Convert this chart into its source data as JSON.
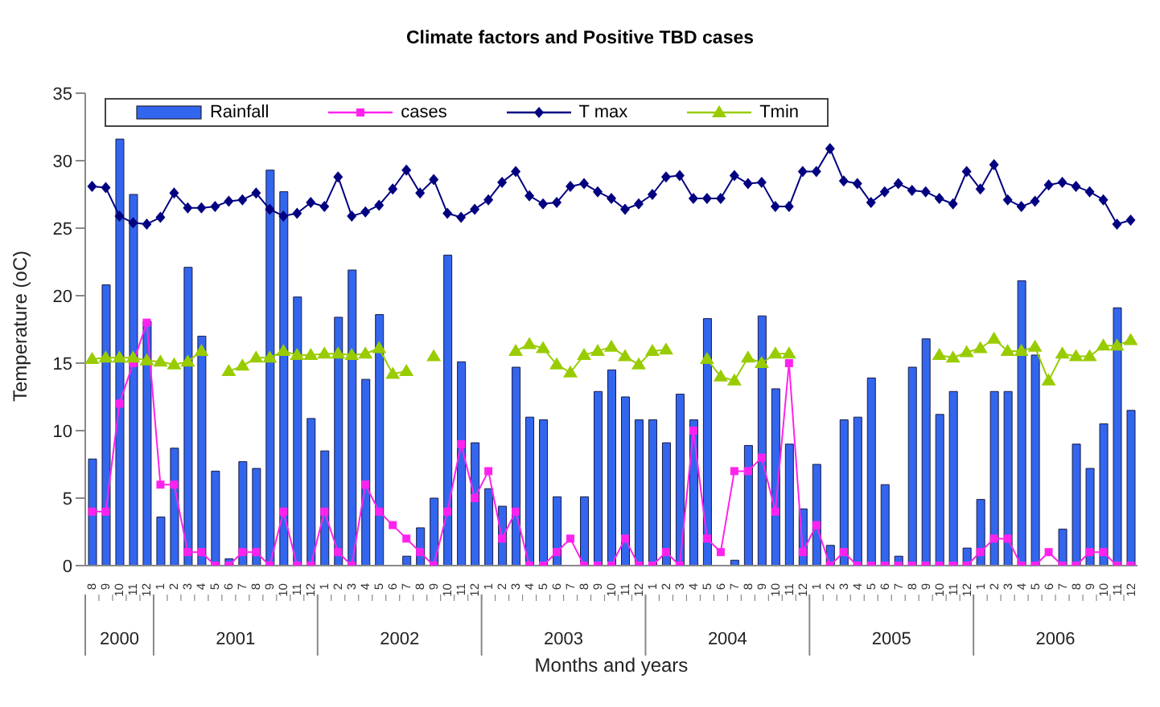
{
  "chart_data": {
    "type": "bar",
    "title": "Climate factors and Positive TBD cases",
    "xlabel": "Months and years",
    "ylabel": "Temperature (oC)",
    "categories": [
      "8",
      "9",
      "10",
      "11",
      "12",
      "1",
      "2",
      "3",
      "4",
      "5",
      "6",
      "7",
      "8",
      "9",
      "10",
      "11",
      "12",
      "1",
      "2",
      "3",
      "4",
      "5",
      "6",
      "7",
      "8",
      "9",
      "10",
      "11",
      "12",
      "1",
      "2",
      "3",
      "4",
      "5",
      "6",
      "7",
      "8",
      "9",
      "10",
      "11",
      "12",
      "1",
      "2",
      "3",
      "4",
      "5",
      "6",
      "7",
      "8",
      "9",
      "10",
      "11",
      "12",
      "1",
      "2",
      "3",
      "4",
      "5",
      "6",
      "7",
      "8",
      "9",
      "10",
      "11",
      "12",
      "1",
      "2",
      "3",
      "4",
      "5",
      "6",
      "7",
      "8",
      "9",
      "10",
      "11",
      "12"
    ],
    "annotations": [
      "2000",
      "2001",
      "2002",
      "2003",
      "2004",
      "2005",
      "2006"
    ],
    "series": [
      {
        "name": "Rainfall",
        "color": "#3366ee",
        "values": [
          7.9,
          20.8,
          31.6,
          27.5,
          18.1,
          3.6,
          8.7,
          22.1,
          17.0,
          7.0,
          0.5,
          7.7,
          7.2,
          29.3,
          27.7,
          19.9,
          10.9,
          8.5,
          18.4,
          21.9,
          13.8,
          18.6,
          0,
          0.7,
          2.8,
          5.0,
          23.0,
          15.1,
          9.1,
          5.7,
          4.4,
          14.7,
          11.0,
          10.8,
          5.1,
          0,
          5.1,
          12.9,
          14.5,
          12.5,
          10.8,
          10.8,
          9.1,
          12.7,
          10.8,
          18.3,
          0,
          0.4,
          8.9,
          18.5,
          13.1,
          9.0,
          4.2,
          7.5,
          1.5,
          10.8,
          11.0,
          13.9,
          6.0,
          0.7,
          14.7,
          16.8,
          11.2,
          12.9,
          1.3,
          4.9,
          12.9,
          12.9,
          21.1,
          15.6,
          0,
          2.7,
          9.0,
          7.2,
          10.5,
          19.1,
          11.5
        ]
      },
      {
        "name": "cases",
        "type": "line",
        "color": "#ff22ee",
        "marker": "square",
        "values": [
          4,
          4,
          12,
          15,
          18,
          6,
          6,
          1,
          1,
          0,
          0,
          1,
          1,
          0,
          4,
          0,
          0,
          4,
          1,
          0,
          6,
          4,
          3,
          2,
          1,
          0,
          4,
          9,
          5,
          7,
          2,
          4,
          0,
          0,
          1,
          2,
          0,
          0,
          0,
          2,
          0,
          0,
          1,
          0,
          10,
          2,
          1,
          7,
          7,
          8,
          4,
          15,
          1,
          3,
          0,
          1,
          0,
          0,
          0,
          0,
          0,
          0,
          0,
          0,
          0,
          1,
          2,
          2,
          0,
          0,
          1,
          0,
          0,
          1,
          1,
          0,
          0
        ]
      },
      {
        "name": "T max",
        "type": "line",
        "color": "#000080",
        "marker": "diamond",
        "values": [
          28.1,
          28.0,
          25.9,
          25.4,
          25.3,
          25.8,
          27.6,
          26.5,
          26.5,
          26.6,
          27.0,
          27.1,
          27.6,
          26.4,
          25.9,
          26.1,
          26.9,
          26.6,
          28.8,
          25.9,
          26.2,
          26.7,
          27.9,
          29.3,
          27.6,
          28.6,
          26.1,
          25.8,
          26.4,
          27.1,
          28.4,
          29.2,
          27.4,
          26.8,
          26.9,
          28.1,
          28.3,
          27.7,
          27.2,
          26.4,
          26.8,
          27.5,
          28.8,
          28.9,
          27.2,
          27.2,
          27.2,
          28.9,
          28.3,
          28.4,
          26.6,
          26.6,
          29.2,
          29.2,
          30.9,
          28.5,
          28.3,
          26.9,
          27.7,
          28.3,
          27.8,
          27.7,
          27.2,
          26.8,
          29.2,
          27.9,
          29.7,
          27.1,
          26.6,
          27.0,
          28.2,
          28.4,
          28.1,
          27.7,
          27.1,
          25.3,
          25.6
        ]
      },
      {
        "name": "Tmin",
        "type": "line",
        "color": "#99cc00",
        "marker": "triangle",
        "values": [
          15.3,
          15.4,
          15.4,
          15.4,
          15.2,
          15.1,
          14.9,
          15.1,
          15.9,
          null,
          14.4,
          14.8,
          15.4,
          15.4,
          15.9,
          15.6,
          15.6,
          15.7,
          15.7,
          15.6,
          15.7,
          16.1,
          14.2,
          14.4,
          null,
          15.5,
          null,
          null,
          null,
          null,
          null,
          15.9,
          16.4,
          16.1,
          14.9,
          14.3,
          15.6,
          15.9,
          16.2,
          15.5,
          14.9,
          15.9,
          16.0,
          null,
          null,
          15.3,
          14.0,
          13.7,
          15.4,
          15.0,
          15.7,
          15.7,
          null,
          null,
          null,
          null,
          null,
          null,
          null,
          null,
          null,
          null,
          15.6,
          15.4,
          15.8,
          16.1,
          16.8,
          15.9,
          15.9,
          16.2,
          13.7,
          15.7,
          15.5,
          15.5,
          16.3,
          16.3,
          16.7
        ]
      }
    ],
    "ylim": [
      0,
      35
    ],
    "yticks": [
      0,
      5,
      10,
      15,
      20,
      25,
      30,
      35
    ],
    "grid": false,
    "legend": "top"
  }
}
